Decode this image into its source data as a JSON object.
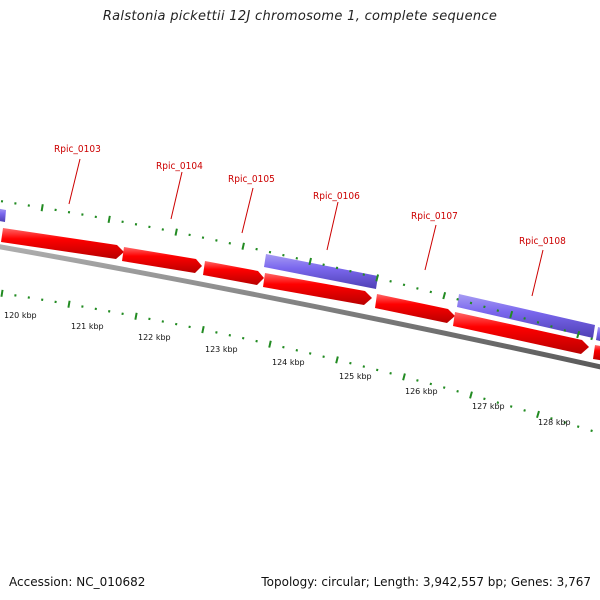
{
  "title": "Ralstonia pickettii 12J chromosome 1, complete sequence",
  "footer": {
    "accession": "Accession: NC_010682",
    "stats": "Topology: circular; Length: 3,942,557 bp; Genes: 3,767"
  },
  "colors": {
    "forward_gene": "#ff0000",
    "reverse_gene": "#7b68ee",
    "backbone": "#808080",
    "ticks": "#228b22",
    "label": "#cc0000"
  },
  "gene_labels": [
    "Rpic_0103",
    "Rpic_0104",
    "Rpic_0105",
    "Rpic_0106",
    "Rpic_0107",
    "Rpic_0108"
  ],
  "scale_labels": [
    "120 kbp",
    "121 kbp",
    "122 kbp",
    "123 kbp",
    "124 kbp",
    "125 kbp",
    "126 kbp",
    "127 kbp",
    "128 kbp"
  ]
}
